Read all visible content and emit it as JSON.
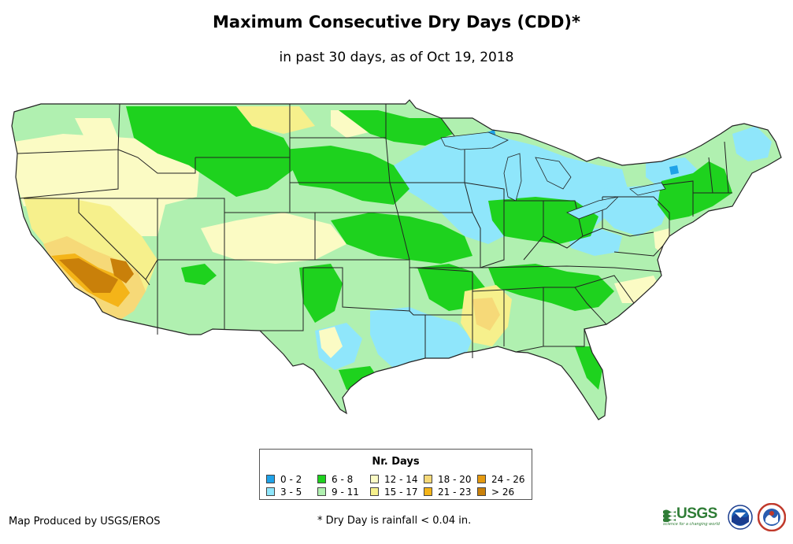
{
  "title": "Maximum Consecutive Dry Days (CDD)*",
  "subtitle": "in past 30 days, as of Oct 19, 2018",
  "legend": {
    "title": "Nr. Days",
    "items": [
      {
        "label": "0 - 2",
        "color": "#1fa2e8"
      },
      {
        "label": "3 - 5",
        "color": "#8fe6fb"
      },
      {
        "label": "6 - 8",
        "color": "#1ed21e"
      },
      {
        "label": "9 - 11",
        "color": "#b0f0b0"
      },
      {
        "label": "12 - 14",
        "color": "#fbfbc4"
      },
      {
        "label": "15 - 17",
        "color": "#f6f08c"
      },
      {
        "label": "18 - 20",
        "color": "#f6d978"
      },
      {
        "label": "21 - 23",
        "color": "#f4b418"
      },
      {
        "label": "24 - 26",
        "color": "#e59a10"
      },
      {
        "label": "> 26",
        "color": "#c9800a"
      }
    ]
  },
  "credit": "Map Produced by USGS/EROS",
  "footnote": "* Dry Day is rainfall < 0.04 in.",
  "logos": {
    "usgs_text": "USGS",
    "usgs_tagline": "science for a changing world",
    "noaa_icon": "noaa-logo-icon",
    "nws_icon": "nws-logo-icon"
  },
  "map": {
    "region": "contiguous-united-states",
    "colors": {
      "border": "#222222",
      "lake": "#8fe6fb"
    }
  }
}
